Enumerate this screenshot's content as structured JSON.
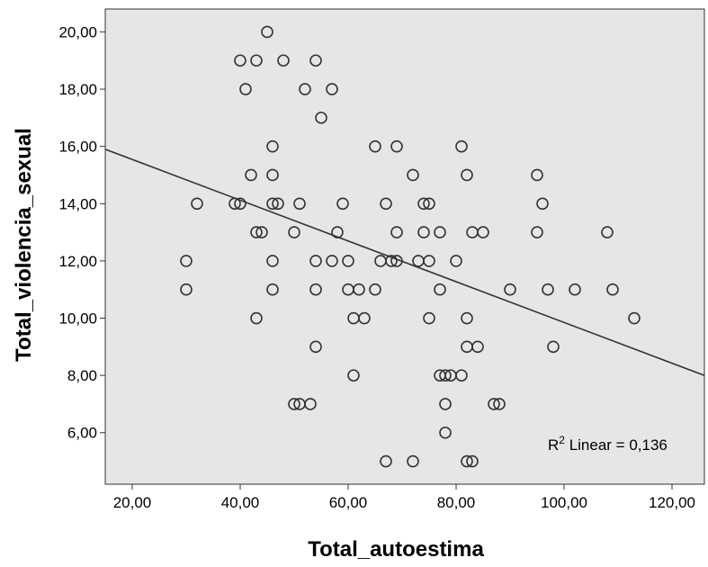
{
  "chart_data": {
    "type": "scatter",
    "xlabel": "Total_autoestima",
    "ylabel": "Total_violencia_sexual",
    "xlim": [
      15,
      126
    ],
    "ylim": [
      4.2,
      20.8
    ],
    "x_ticks": [
      20,
      40,
      60,
      80,
      100,
      120
    ],
    "x_tick_labels": [
      "20,00",
      "40,00",
      "60,00",
      "80,00",
      "100,00",
      "120,00"
    ],
    "y_ticks": [
      6,
      8,
      10,
      12,
      14,
      16,
      18,
      20
    ],
    "y_tick_labels": [
      "6,00",
      "8,00",
      "10,00",
      "12,00",
      "14,00",
      "16,00",
      "18,00",
      "20,00"
    ],
    "grid": false,
    "plot_background": "#e6e6e6",
    "marker_color": "#333333",
    "fit_line": {
      "type": "linear",
      "color": "#333333",
      "points": [
        [
          15,
          15.9
        ],
        [
          126,
          8.0
        ]
      ]
    },
    "annotation": {
      "prefix": "R",
      "superscript": "2",
      "suffix": " Linear = 0,136"
    },
    "points": [
      [
        45,
        20
      ],
      [
        40,
        19
      ],
      [
        43,
        19
      ],
      [
        48,
        19
      ],
      [
        54,
        19
      ],
      [
        41,
        18
      ],
      [
        52,
        18
      ],
      [
        57,
        18
      ],
      [
        55,
        17
      ],
      [
        46,
        16
      ],
      [
        65,
        16
      ],
      [
        69,
        16
      ],
      [
        81,
        16
      ],
      [
        42,
        15
      ],
      [
        46,
        15
      ],
      [
        72,
        15
      ],
      [
        82,
        15
      ],
      [
        95,
        15
      ],
      [
        32,
        14
      ],
      [
        39,
        14
      ],
      [
        40,
        14
      ],
      [
        46,
        14
      ],
      [
        47,
        14
      ],
      [
        51,
        14
      ],
      [
        59,
        14
      ],
      [
        67,
        14
      ],
      [
        74,
        14
      ],
      [
        75,
        14
      ],
      [
        96,
        14
      ],
      [
        43,
        13
      ],
      [
        44,
        13
      ],
      [
        50,
        13
      ],
      [
        58,
        13
      ],
      [
        69,
        13
      ],
      [
        74,
        13
      ],
      [
        77,
        13
      ],
      [
        83,
        13
      ],
      [
        85,
        13
      ],
      [
        95,
        13
      ],
      [
        108,
        13
      ],
      [
        30,
        12
      ],
      [
        46,
        12
      ],
      [
        54,
        12
      ],
      [
        57,
        12
      ],
      [
        60,
        12
      ],
      [
        66,
        12
      ],
      [
        68,
        12
      ],
      [
        69,
        12
      ],
      [
        73,
        12
      ],
      [
        75,
        12
      ],
      [
        80,
        12
      ],
      [
        30,
        11
      ],
      [
        46,
        11
      ],
      [
        54,
        11
      ],
      [
        60,
        11
      ],
      [
        62,
        11
      ],
      [
        65,
        11
      ],
      [
        77,
        11
      ],
      [
        90,
        11
      ],
      [
        97,
        11
      ],
      [
        102,
        11
      ],
      [
        109,
        11
      ],
      [
        43,
        10
      ],
      [
        61,
        10
      ],
      [
        63,
        10
      ],
      [
        75,
        10
      ],
      [
        82,
        10
      ],
      [
        113,
        10
      ],
      [
        54,
        9
      ],
      [
        82,
        9
      ],
      [
        84,
        9
      ],
      [
        98,
        9
      ],
      [
        61,
        8
      ],
      [
        77,
        8
      ],
      [
        78,
        8
      ],
      [
        79,
        8
      ],
      [
        81,
        8
      ],
      [
        50,
        7
      ],
      [
        51,
        7
      ],
      [
        53,
        7
      ],
      [
        78,
        7
      ],
      [
        87,
        7
      ],
      [
        88,
        7
      ],
      [
        78,
        6
      ],
      [
        67,
        5
      ],
      [
        72,
        5
      ],
      [
        82,
        5
      ],
      [
        83,
        5
      ]
    ]
  }
}
